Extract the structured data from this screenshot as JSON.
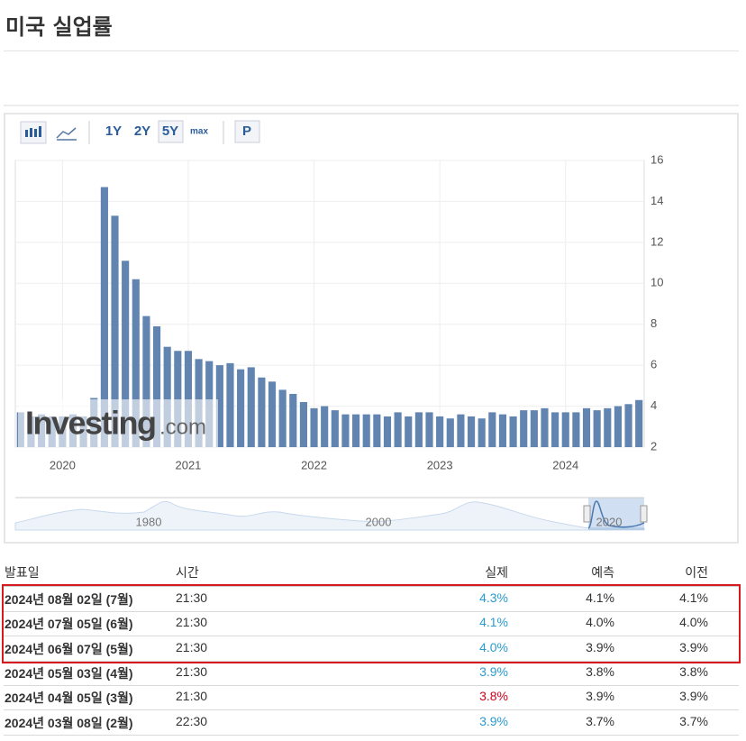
{
  "title": "미국 실업률",
  "toolbar": {
    "buttons": [
      "1Y",
      "2Y",
      "5Y",
      "max",
      "P"
    ]
  },
  "watermark": {
    "brand": "Investing",
    "suffix": ".com"
  },
  "navigator": {
    "labels": [
      "1980",
      "2000",
      "2020"
    ]
  },
  "chart_data": {
    "type": "bar",
    "color": "#6184b0",
    "y_axis_side": "right",
    "grid": true,
    "categories": [
      null,
      null,
      null,
      null,
      "2020",
      null,
      null,
      null,
      null,
      null,
      null,
      null,
      null,
      null,
      null,
      null,
      "2021",
      null,
      null,
      null,
      null,
      null,
      null,
      null,
      null,
      null,
      null,
      null,
      "2022",
      null,
      null,
      null,
      null,
      null,
      null,
      null,
      null,
      null,
      null,
      null,
      "2023",
      null,
      null,
      null,
      null,
      null,
      null,
      null,
      null,
      null,
      null,
      null,
      "2024",
      null,
      null,
      null,
      null,
      null,
      null,
      null
    ],
    "values": [
      3.7,
      3.5,
      3.6,
      3.5,
      3.5,
      3.6,
      3.5,
      4.4,
      14.7,
      13.3,
      11.1,
      10.2,
      8.4,
      7.9,
      6.9,
      6.7,
      6.7,
      6.3,
      6.2,
      6.0,
      6.1,
      5.8,
      5.9,
      5.4,
      5.2,
      4.8,
      4.6,
      4.2,
      3.9,
      4.0,
      3.8,
      3.6,
      3.6,
      3.6,
      3.6,
      3.5,
      3.7,
      3.5,
      3.7,
      3.7,
      3.5,
      3.4,
      3.6,
      3.5,
      3.4,
      3.7,
      3.6,
      3.5,
      3.8,
      3.8,
      3.9,
      3.7,
      3.7,
      3.7,
      3.9,
      3.8,
      3.9,
      4.0,
      4.1,
      4.3
    ],
    "ylim": [
      2,
      16
    ],
    "yticks": [
      2,
      4,
      6,
      8,
      10,
      12,
      14,
      16
    ]
  },
  "table": {
    "headers": [
      "발표일",
      "시간",
      "실제",
      "예측",
      "이전"
    ],
    "rows": [
      [
        "2024년 08월 02일 (7월)",
        "21:30",
        "4.3%",
        "4.1%",
        "4.1%"
      ],
      [
        "2024년 07월 05일 (6월)",
        "21:30",
        "4.1%",
        "4.0%",
        "4.0%"
      ],
      [
        "2024년 06월 07일 (5월)",
        "21:30",
        "4.0%",
        "3.9%",
        "3.9%"
      ],
      [
        "2024년 05월 03일 (4월)",
        "21:30",
        "3.9%",
        "3.8%",
        "3.8%"
      ],
      [
        "2024년 04월 05일 (3월)",
        "21:30",
        "3.8%",
        "3.9%",
        "3.9%"
      ],
      [
        "2024년 03월 08일 (2월)",
        "22:30",
        "3.9%",
        "3.7%",
        "3.7%"
      ]
    ],
    "actual_colors": [
      "#2a9bd0",
      "#2a9bd0",
      "#2a9bd0",
      "#2a9bd0",
      "#d0021b",
      "#2a9bd0"
    ]
  }
}
